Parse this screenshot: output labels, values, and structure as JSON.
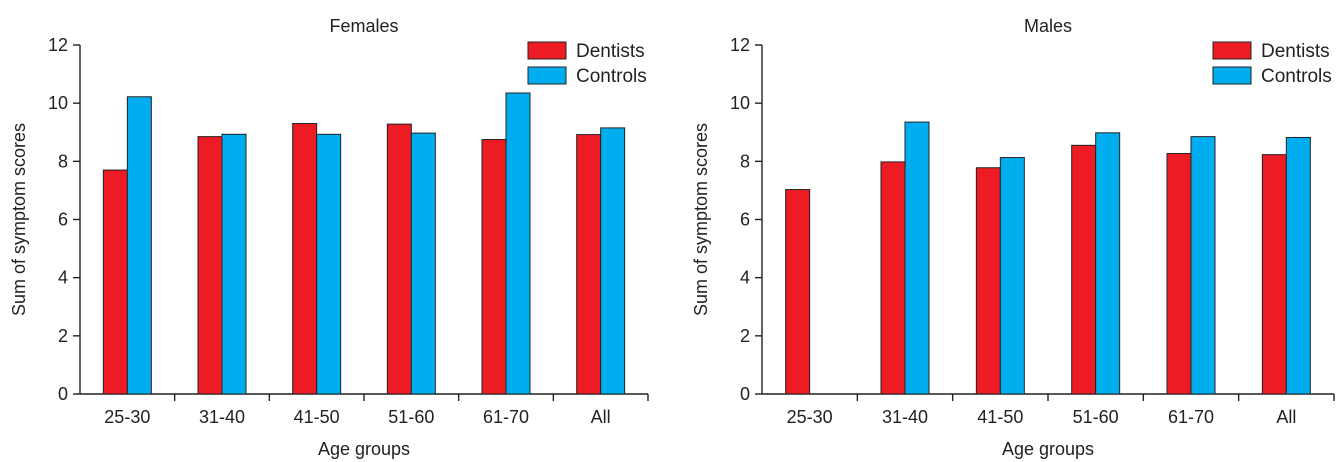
{
  "chart_data": [
    {
      "type": "bar",
      "title": "Females",
      "xlabel": "Age groups",
      "ylabel": "Sum of symptom scores",
      "categories": [
        "25-30",
        "31-40",
        "41-50",
        "51-60",
        "61-70",
        "All"
      ],
      "ylim": [
        0,
        12
      ],
      "yticks": [
        0,
        2,
        4,
        6,
        8,
        10,
        12
      ],
      "series": [
        {
          "name": "Dentists",
          "color": "#ed1c24",
          "values": [
            7.7,
            8.85,
            9.3,
            9.28,
            8.75,
            8.92
          ]
        },
        {
          "name": "Controls",
          "color": "#00aeef",
          "values": [
            10.22,
            8.93,
            8.93,
            8.97,
            10.35,
            9.15
          ]
        }
      ],
      "legend": "top-right",
      "grid": false
    },
    {
      "type": "bar",
      "title": "Males",
      "xlabel": "Age groups",
      "ylabel": "Sum of symptom scores",
      "categories": [
        "25-30",
        "31-40",
        "41-50",
        "51-60",
        "61-70",
        "All"
      ],
      "ylim": [
        0,
        12
      ],
      "yticks": [
        0,
        2,
        4,
        6,
        8,
        10,
        12
      ],
      "series": [
        {
          "name": "Dentists",
          "color": "#ed1c24",
          "values": [
            7.03,
            7.98,
            7.78,
            8.55,
            8.27,
            8.23
          ]
        },
        {
          "name": "Controls",
          "color": "#00aeef",
          "values": [
            null,
            9.35,
            8.13,
            8.98,
            8.85,
            8.82
          ]
        }
      ],
      "legend": "top-right",
      "grid": false
    }
  ]
}
